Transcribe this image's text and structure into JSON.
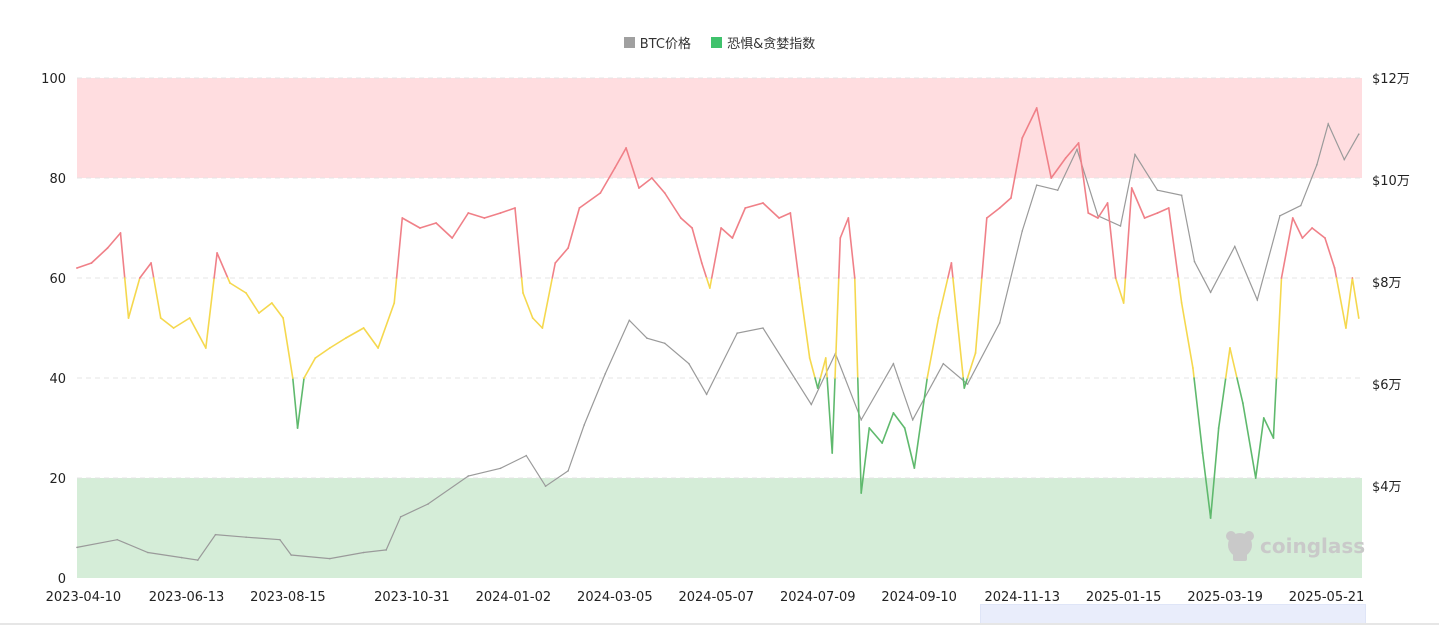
{
  "legend": [
    {
      "label": "BTC价格",
      "color": "#a0a0a0"
    },
    {
      "label": "恐惧&贪婪指数",
      "color": "#3fc26c"
    }
  ],
  "watermark": {
    "text": "coinglass",
    "icon": "coinglass-logo-icon"
  },
  "colors": {
    "greed_zone": "#ffdde0",
    "fear_zone": "#d5edd8",
    "greed_line": "#f08088",
    "neutral_line": "#f5d84e",
    "fear_line": "#5fb96d",
    "price_line": "#9a9a9a",
    "grid": "#e4e4e4"
  },
  "chart_data": {
    "type": "line",
    "title": "",
    "x_ticks": [
      "2023-04-10",
      "2023-06-13",
      "2023-08-15",
      "2023-10-31",
      "2024-01-02",
      "2024-03-05",
      "2024-05-07",
      "2024-07-09",
      "2024-09-10",
      "2024-11-13",
      "2025-01-15",
      "2025-03-19",
      "2025-05-21"
    ],
    "x_range": [
      "2023-04-06",
      "2025-06-12"
    ],
    "y_left": {
      "ticks": [
        0,
        20,
        40,
        60,
        80,
        100
      ],
      "range": [
        0,
        100
      ]
    },
    "y_right": {
      "ticks": [
        "$4万",
        "$6万",
        "$8万",
        "$10万",
        "$12万"
      ],
      "tick_values": [
        40000,
        60000,
        80000,
        100000,
        120000
      ],
      "range": [
        22000,
        120000
      ]
    },
    "bands": [
      {
        "from": 80,
        "to": 100,
        "zone": "greed"
      },
      {
        "from": 0,
        "to": 20,
        "zone": "fear"
      }
    ],
    "thresholds": {
      "fear_below": 40,
      "greed_above": 60
    },
    "series": [
      {
        "name": "恐惧&贪婪指数",
        "axis": "left",
        "points": [
          [
            "2023-04-06",
            62
          ],
          [
            "2023-04-15",
            63
          ],
          [
            "2023-04-25",
            66
          ],
          [
            "2023-05-03",
            69
          ],
          [
            "2023-05-08",
            52
          ],
          [
            "2023-05-15",
            60
          ],
          [
            "2023-05-22",
            63
          ],
          [
            "2023-05-28",
            52
          ],
          [
            "2023-06-05",
            50
          ],
          [
            "2023-06-15",
            52
          ],
          [
            "2023-06-25",
            46
          ],
          [
            "2023-07-02",
            65
          ],
          [
            "2023-07-10",
            59
          ],
          [
            "2023-07-20",
            57
          ],
          [
            "2023-07-28",
            53
          ],
          [
            "2023-08-05",
            55
          ],
          [
            "2023-08-12",
            52
          ],
          [
            "2023-08-18",
            40
          ],
          [
            "2023-08-21",
            30
          ],
          [
            "2023-08-25",
            40
          ],
          [
            "2023-09-01",
            44
          ],
          [
            "2023-09-10",
            46
          ],
          [
            "2023-09-20",
            48
          ],
          [
            "2023-10-01",
            50
          ],
          [
            "2023-10-10",
            46
          ],
          [
            "2023-10-20",
            55
          ],
          [
            "2023-10-25",
            72
          ],
          [
            "2023-11-05",
            70
          ],
          [
            "2023-11-15",
            71
          ],
          [
            "2023-11-25",
            68
          ],
          [
            "2023-12-05",
            73
          ],
          [
            "2023-12-15",
            72
          ],
          [
            "2023-12-25",
            73
          ],
          [
            "2024-01-03",
            74
          ],
          [
            "2024-01-08",
            57
          ],
          [
            "2024-01-14",
            52
          ],
          [
            "2024-01-20",
            50
          ],
          [
            "2024-01-28",
            63
          ],
          [
            "2024-02-05",
            66
          ],
          [
            "2024-02-12",
            74
          ],
          [
            "2024-02-25",
            77
          ],
          [
            "2024-03-05",
            82
          ],
          [
            "2024-03-12",
            86
          ],
          [
            "2024-03-20",
            78
          ],
          [
            "2024-03-28",
            80
          ],
          [
            "2024-04-05",
            77
          ],
          [
            "2024-04-15",
            72
          ],
          [
            "2024-04-22",
            70
          ],
          [
            "2024-04-28",
            63
          ],
          [
            "2024-05-03",
            58
          ],
          [
            "2024-05-10",
            70
          ],
          [
            "2024-05-17",
            68
          ],
          [
            "2024-05-25",
            74
          ],
          [
            "2024-06-05",
            75
          ],
          [
            "2024-06-15",
            72
          ],
          [
            "2024-06-22",
            73
          ],
          [
            "2024-06-28",
            58
          ],
          [
            "2024-07-04",
            44
          ],
          [
            "2024-07-09",
            38
          ],
          [
            "2024-07-14",
            44
          ],
          [
            "2024-07-18",
            25
          ],
          [
            "2024-07-23",
            68
          ],
          [
            "2024-07-28",
            72
          ],
          [
            "2024-08-01",
            60
          ],
          [
            "2024-08-05",
            17
          ],
          [
            "2024-08-10",
            30
          ],
          [
            "2024-08-18",
            27
          ],
          [
            "2024-08-25",
            33
          ],
          [
            "2024-09-01",
            30
          ],
          [
            "2024-09-07",
            22
          ],
          [
            "2024-09-15",
            40
          ],
          [
            "2024-09-22",
            52
          ],
          [
            "2024-09-30",
            63
          ],
          [
            "2024-10-08",
            38
          ],
          [
            "2024-10-15",
            45
          ],
          [
            "2024-10-22",
            72
          ],
          [
            "2024-10-30",
            74
          ],
          [
            "2024-11-06",
            76
          ],
          [
            "2024-11-13",
            88
          ],
          [
            "2024-11-22",
            94
          ],
          [
            "2024-12-01",
            80
          ],
          [
            "2024-12-10",
            84
          ],
          [
            "2024-12-18",
            87
          ],
          [
            "2024-12-24",
            73
          ],
          [
            "2024-12-30",
            72
          ],
          [
            "2025-01-05",
            75
          ],
          [
            "2025-01-10",
            60
          ],
          [
            "2025-01-15",
            55
          ],
          [
            "2025-01-20",
            78
          ],
          [
            "2025-01-28",
            72
          ],
          [
            "2025-02-05",
            73
          ],
          [
            "2025-02-12",
            74
          ],
          [
            "2025-02-20",
            55
          ],
          [
            "2025-02-27",
            42
          ],
          [
            "2025-03-05",
            25
          ],
          [
            "2025-03-10",
            12
          ],
          [
            "2025-03-15",
            30
          ],
          [
            "2025-03-22",
            46
          ],
          [
            "2025-03-30",
            35
          ],
          [
            "2025-04-07",
            20
          ],
          [
            "2025-04-12",
            32
          ],
          [
            "2025-04-18",
            28
          ],
          [
            "2025-04-23",
            60
          ],
          [
            "2025-04-30",
            72
          ],
          [
            "2025-05-06",
            68
          ],
          [
            "2025-05-12",
            70
          ],
          [
            "2025-05-20",
            68
          ],
          [
            "2025-05-26",
            62
          ],
          [
            "2025-06-02",
            50
          ],
          [
            "2025-06-06",
            60
          ],
          [
            "2025-06-10",
            52
          ]
        ]
      },
      {
        "name": "BTC价格",
        "axis": "right",
        "points": [
          [
            "2023-04-06",
            28000
          ],
          [
            "2023-05-01",
            29500
          ],
          [
            "2023-05-20",
            27000
          ],
          [
            "2023-06-10",
            26000
          ],
          [
            "2023-06-20",
            25500
          ],
          [
            "2023-07-01",
            30500
          ],
          [
            "2023-07-20",
            30000
          ],
          [
            "2023-08-10",
            29500
          ],
          [
            "2023-08-17",
            26500
          ],
          [
            "2023-09-10",
            25800
          ],
          [
            "2023-10-01",
            27000
          ],
          [
            "2023-10-15",
            27500
          ],
          [
            "2023-10-24",
            34000
          ],
          [
            "2023-11-10",
            36500
          ],
          [
            "2023-12-05",
            42000
          ],
          [
            "2023-12-25",
            43500
          ],
          [
            "2024-01-10",
            46000
          ],
          [
            "2024-01-22",
            40000
          ],
          [
            "2024-02-05",
            43000
          ],
          [
            "2024-02-15",
            52000
          ],
          [
            "2024-02-28",
            62000
          ],
          [
            "2024-03-14",
            72500
          ],
          [
            "2024-03-25",
            69000
          ],
          [
            "2024-04-05",
            68000
          ],
          [
            "2024-04-20",
            64000
          ],
          [
            "2024-05-01",
            58000
          ],
          [
            "2024-05-20",
            70000
          ],
          [
            "2024-06-05",
            71000
          ],
          [
            "2024-06-25",
            61000
          ],
          [
            "2024-07-05",
            56000
          ],
          [
            "2024-07-20",
            66000
          ],
          [
            "2024-08-05",
            53000
          ],
          [
            "2024-08-25",
            64000
          ],
          [
            "2024-09-06",
            53000
          ],
          [
            "2024-09-25",
            64000
          ],
          [
            "2024-10-10",
            60000
          ],
          [
            "2024-10-30",
            72000
          ],
          [
            "2024-11-13",
            90000
          ],
          [
            "2024-11-22",
            99000
          ],
          [
            "2024-12-05",
            98000
          ],
          [
            "2024-12-17",
            106000
          ],
          [
            "2024-12-30",
            93000
          ],
          [
            "2025-01-13",
            91000
          ],
          [
            "2025-01-22",
            105000
          ],
          [
            "2025-02-05",
            98000
          ],
          [
            "2025-02-20",
            97000
          ],
          [
            "2025-02-28",
            84000
          ],
          [
            "2025-03-10",
            78000
          ],
          [
            "2025-03-25",
            87000
          ],
          [
            "2025-04-08",
            76500
          ],
          [
            "2025-04-22",
            93000
          ],
          [
            "2025-05-05",
            95000
          ],
          [
            "2025-05-15",
            103000
          ],
          [
            "2025-05-22",
            111000
          ],
          [
            "2025-06-01",
            104000
          ],
          [
            "2025-06-10",
            109000
          ]
        ]
      }
    ],
    "grid": true,
    "legend_position": "top-center"
  }
}
